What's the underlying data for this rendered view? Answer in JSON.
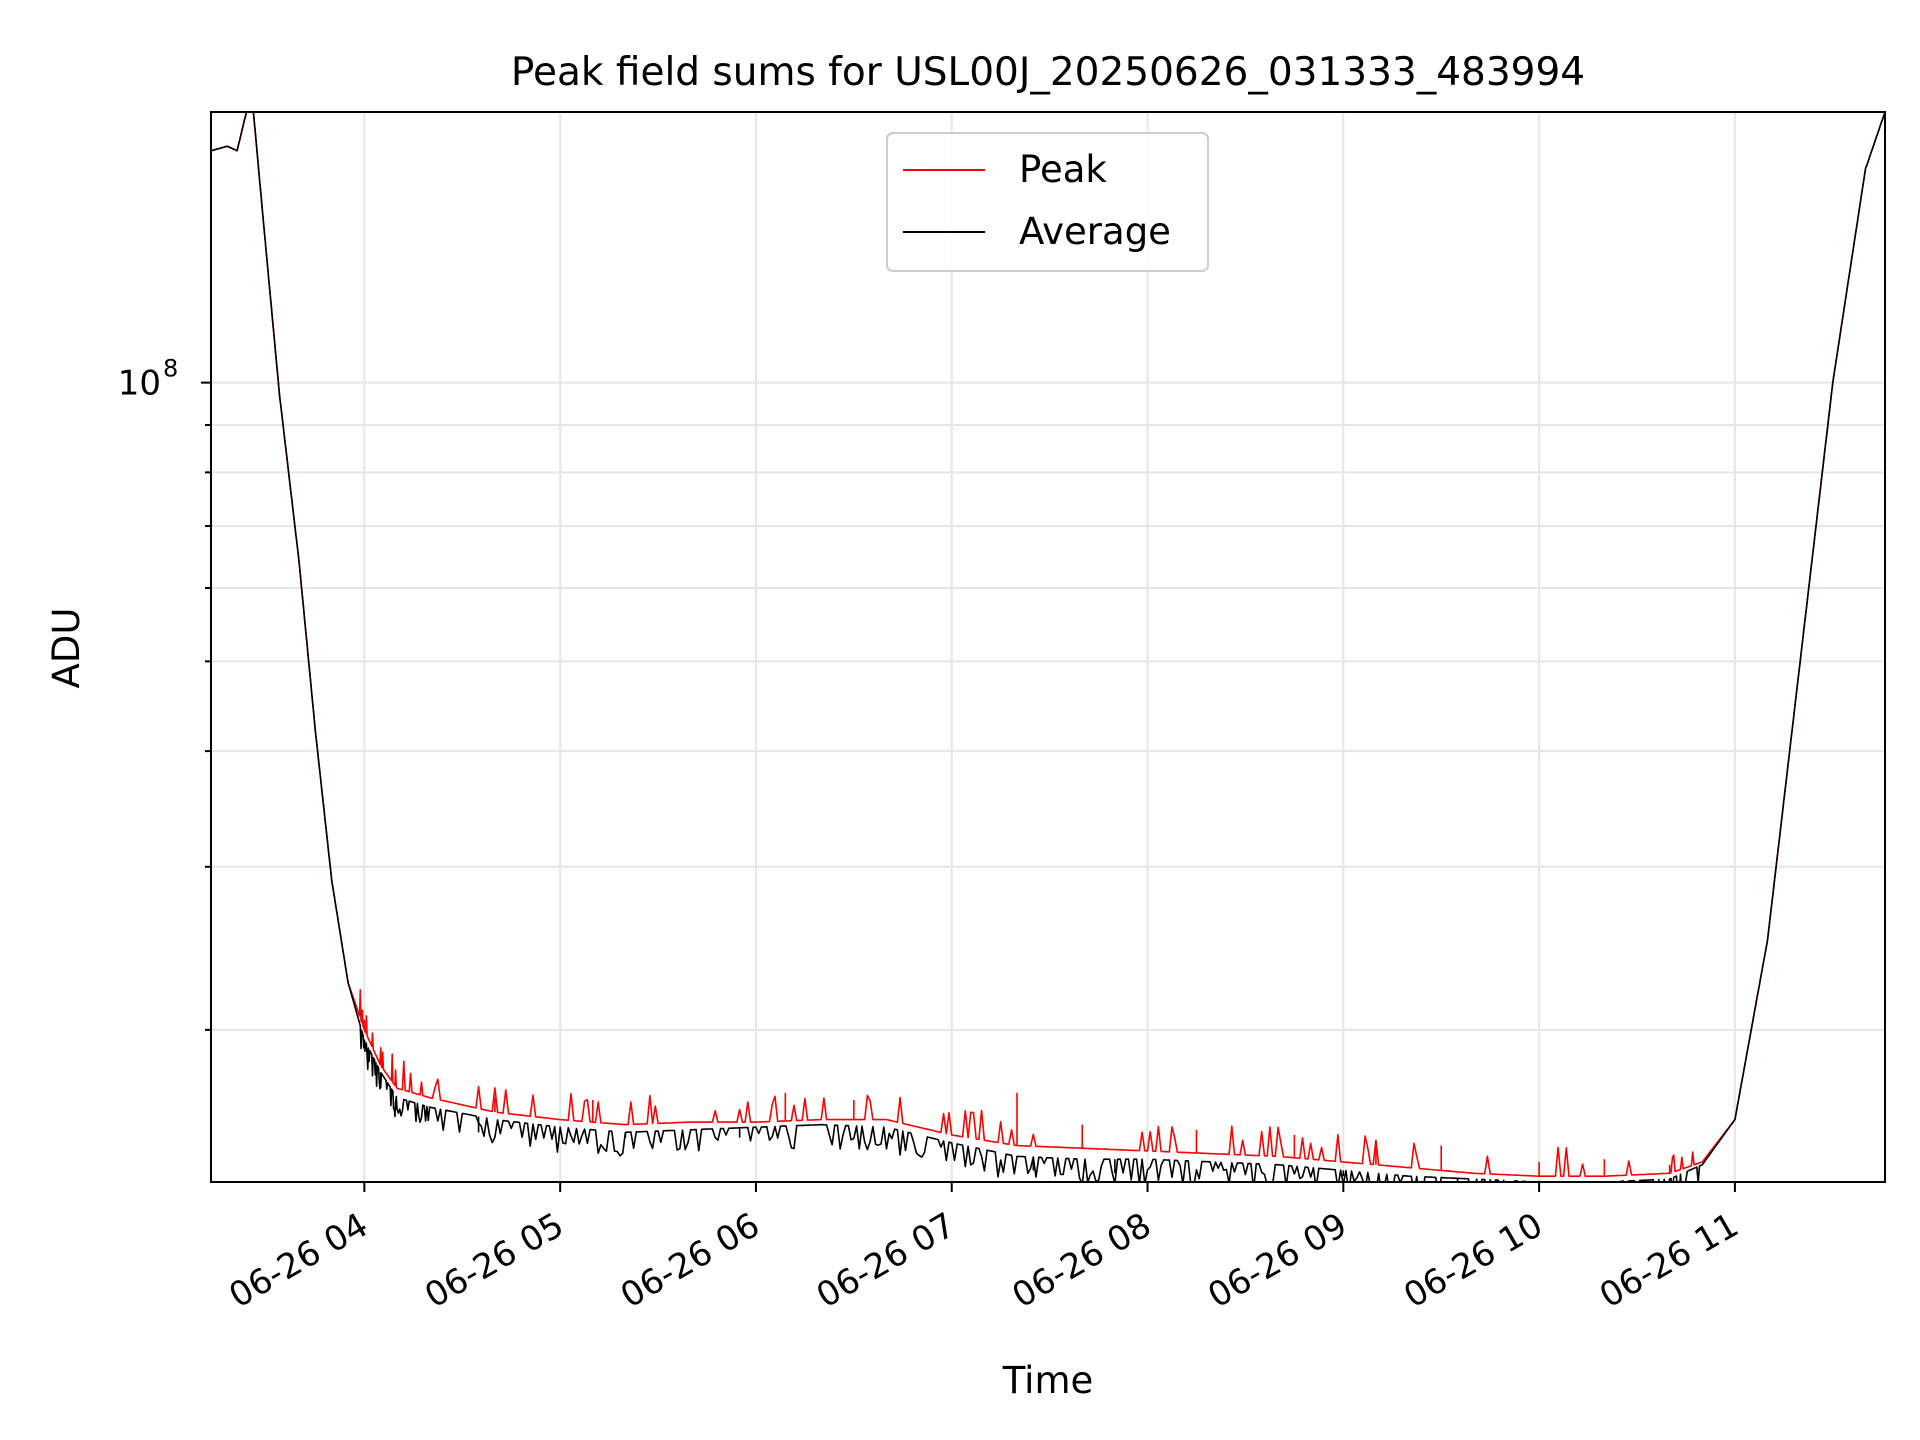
{
  "chart_data": {
    "type": "line",
    "title": "Peak field sums for USL00J_20250626_031333_483994",
    "xlabel": "Time",
    "ylabel": "ADU",
    "y_scale": "log",
    "ylim": [
      13700000,
      196000000
    ],
    "xlim": [
      "2025-06-26 03:13",
      "2025-06-26 11:46"
    ],
    "x_ticks": [
      "06-26 04",
      "06-26 05",
      "06-26 06",
      "06-26 07",
      "06-26 08",
      "06-26 09",
      "06-26 10",
      "06-26 11"
    ],
    "y_ticks": [
      {
        "base": "10",
        "exponent": "8"
      }
    ],
    "grid": true,
    "legend": {
      "placement": "top-center"
    },
    "series": [
      {
        "name": "Peak",
        "color": "#ff0000",
        "x": [
          "2025-06-26 03:13",
          "2025-06-26 03:18",
          "2025-06-26 03:21",
          "2025-06-26 03:24",
          "2025-06-26 03:26",
          "2025-06-26 03:29",
          "2025-06-26 03:34",
          "2025-06-26 03:40",
          "2025-06-26 03:45",
          "2025-06-26 03:50",
          "2025-06-26 03:55",
          "2025-06-26 04:00",
          "2025-06-26 04:05",
          "2025-06-26 04:10",
          "2025-06-26 04:20",
          "2025-06-26 04:40",
          "2025-06-26 05:00",
          "2025-06-26 05:20",
          "2025-06-26 05:40",
          "2025-06-26 06:00",
          "2025-06-26 06:20",
          "2025-06-26 06:40",
          "2025-06-26 07:00",
          "2025-06-26 07:20",
          "2025-06-26 07:40",
          "2025-06-26 08:00",
          "2025-06-26 08:20",
          "2025-06-26 08:40",
          "2025-06-26 09:00",
          "2025-06-26 09:20",
          "2025-06-26 09:40",
          "2025-06-26 10:00",
          "2025-06-26 10:20",
          "2025-06-26 10:40",
          "2025-06-26 10:50",
          "2025-06-26 11:00",
          "2025-06-26 11:10",
          "2025-06-26 11:20",
          "2025-06-26 11:30",
          "2025-06-26 11:40",
          "2025-06-26 11:46"
        ],
        "y": [
          178000000,
          180000000,
          178000000,
          197000000,
          196000000,
          150000000,
          97000000,
          64000000,
          42000000,
          29000000,
          22500000,
          20000000,
          18300000,
          17300000,
          16900000,
          16300000,
          16000000,
          15800000,
          15900000,
          15900000,
          16000000,
          16000000,
          15400000,
          15000000,
          14900000,
          14800000,
          14700000,
          14600000,
          14400000,
          14200000,
          14000000,
          13900000,
          13900000,
          14000000,
          14400000,
          16000000,
          25000000,
          50000000,
          100000000,
          170000000,
          196000000
        ],
        "spikes": [
          [
            "2025-06-26 04:00",
            20500000
          ],
          [
            "2025-06-26 04:40",
            16900000
          ],
          [
            "2025-06-26 05:10",
            16800000
          ],
          [
            "2025-06-26 06:09",
            17100000
          ],
          [
            "2025-06-26 06:30",
            16800000
          ],
          [
            "2025-06-26 07:20",
            17100000
          ],
          [
            "2025-06-26 07:40",
            15800000
          ],
          [
            "2025-06-26 08:15",
            15600000
          ],
          [
            "2025-06-26 08:45",
            15400000
          ],
          [
            "2025-06-26 09:10",
            15200000
          ],
          [
            "2025-06-26 09:30",
            15000000
          ],
          [
            "2025-06-26 10:00",
            14400000
          ],
          [
            "2025-06-26 10:20",
            14500000
          ],
          [
            "2025-06-26 10:40",
            14300000
          ]
        ]
      },
      {
        "name": "Average",
        "color": "#000000",
        "x": [
          "2025-06-26 03:13",
          "2025-06-26 03:18",
          "2025-06-26 03:21",
          "2025-06-26 03:24",
          "2025-06-26 03:26",
          "2025-06-26 03:29",
          "2025-06-26 03:34",
          "2025-06-26 03:40",
          "2025-06-26 03:45",
          "2025-06-26 03:50",
          "2025-06-26 03:55",
          "2025-06-26 04:00",
          "2025-06-26 04:05",
          "2025-06-26 04:10",
          "2025-06-26 04:20",
          "2025-06-26 04:40",
          "2025-06-26 05:00",
          "2025-06-26 05:20",
          "2025-06-26 05:40",
          "2025-06-26 06:00",
          "2025-06-26 06:20",
          "2025-06-26 06:40",
          "2025-06-26 07:00",
          "2025-06-26 07:20",
          "2025-06-26 07:40",
          "2025-06-26 08:00",
          "2025-06-26 08:20",
          "2025-06-26 08:40",
          "2025-06-26 09:00",
          "2025-06-26 09:20",
          "2025-06-26 09:40",
          "2025-06-26 10:00",
          "2025-06-26 10:20",
          "2025-06-26 10:40",
          "2025-06-26 10:50",
          "2025-06-26 11:00",
          "2025-06-26 11:10",
          "2025-06-26 11:20",
          "2025-06-26 11:30",
          "2025-06-26 11:40",
          "2025-06-26 11:46"
        ],
        "y": [
          178000000,
          180000000,
          178000000,
          197000000,
          196000000,
          150000000,
          97000000,
          64000000,
          42000000,
          29000000,
          22500000,
          19500000,
          18000000,
          16900000,
          16500000,
          16000000,
          15700000,
          15500000,
          15600000,
          15700000,
          15800000,
          15700000,
          15100000,
          14600000,
          14500000,
          14500000,
          14400000,
          14300000,
          14100000,
          13900000,
          13800000,
          13700000,
          13700000,
          13800000,
          14300000,
          16000000,
          25000000,
          50000000,
          100000000,
          170000000,
          196000000
        ],
        "dips": [
          [
            "2025-06-26 04:05",
            17300000
          ],
          [
            "2025-06-26 04:35",
            15500000
          ],
          [
            "2025-06-26 05:20",
            15300000
          ],
          [
            "2025-06-26 05:55",
            15300000
          ],
          [
            "2025-06-26 07:25",
            14100000
          ],
          [
            "2025-06-26 07:50",
            14000000
          ],
          [
            "2025-06-26 09:00",
            13900000
          ],
          [
            "2025-06-26 09:35",
            13600000
          ],
          [
            "2025-06-26 10:15",
            13500000
          ],
          [
            "2025-06-26 10:28",
            13400000
          ]
        ]
      }
    ]
  }
}
